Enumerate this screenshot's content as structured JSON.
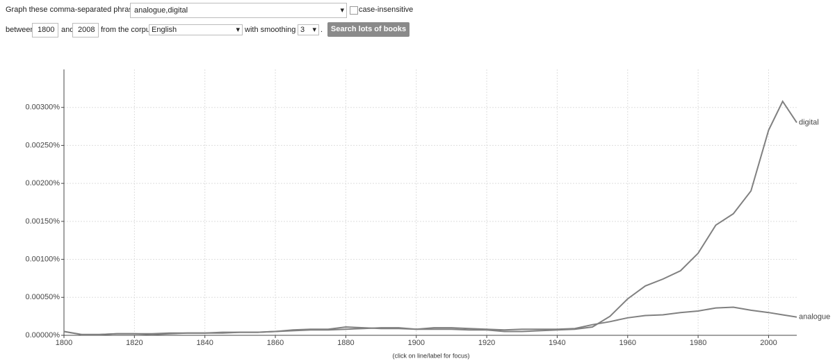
{
  "form": {
    "phrases_label": "Graph these comma-separated phrases:",
    "phrases_value": "analogue,digital",
    "case_label": "case-insensitive",
    "between_label": "between",
    "start_year": "1800",
    "and_label": "and",
    "end_year": "2008",
    "corpus_label": "from the corpus",
    "corpus": "English",
    "smoothing_label": "with smoothing of",
    "smoothing": "3",
    "period": ".",
    "button": "Search lots of books"
  },
  "chart_data": {
    "type": "line",
    "x": [
      1800,
      1805,
      1810,
      1815,
      1820,
      1825,
      1830,
      1835,
      1840,
      1845,
      1850,
      1855,
      1860,
      1865,
      1870,
      1875,
      1880,
      1885,
      1890,
      1895,
      1900,
      1905,
      1910,
      1915,
      1920,
      1925,
      1930,
      1935,
      1940,
      1945,
      1950,
      1955,
      1960,
      1965,
      1970,
      1975,
      1980,
      1985,
      1990,
      1995,
      2000,
      2004,
      2008
    ],
    "series": [
      {
        "name": "digital",
        "color": "#808080",
        "values": [
          5e-05,
          1e-05,
          1e-05,
          2e-05,
          2e-05,
          2e-05,
          3e-05,
          3e-05,
          3e-05,
          4e-05,
          4e-05,
          4e-05,
          5e-05,
          6e-05,
          7e-05,
          7e-05,
          8e-05,
          9e-05,
          0.0001,
          0.0001,
          8e-05,
          8e-05,
          8e-05,
          7e-05,
          7e-05,
          5e-05,
          5e-05,
          6e-05,
          7e-05,
          8e-05,
          0.00011,
          0.00025,
          0.00048,
          0.00065,
          0.00074,
          0.00085,
          0.00108,
          0.00145,
          0.0016,
          0.0019,
          0.0027,
          0.00308,
          0.0028
        ]
      },
      {
        "name": "analogue",
        "color": "#808080",
        "values": [
          5e-05,
          1e-05,
          1e-05,
          2e-05,
          2e-05,
          1e-05,
          2e-05,
          3e-05,
          3e-05,
          3e-05,
          4e-05,
          4e-05,
          5e-05,
          7e-05,
          8e-05,
          8e-05,
          0.00011,
          0.0001,
          9e-05,
          9e-05,
          8e-05,
          0.0001,
          0.0001,
          9e-05,
          8e-05,
          7e-05,
          8e-05,
          8e-05,
          8e-05,
          9e-05,
          0.00014,
          0.00018,
          0.00023,
          0.00026,
          0.00027,
          0.0003,
          0.00032,
          0.00036,
          0.00037,
          0.00033,
          0.0003,
          0.00027,
          0.00024
        ]
      }
    ],
    "xlim": [
      1800,
      2008
    ],
    "xticks": [
      1800,
      1820,
      1840,
      1860,
      1880,
      1900,
      1920,
      1940,
      1960,
      1980,
      2000
    ],
    "ylim": [
      0,
      0.0035
    ],
    "yticks": [
      {
        "value": 0,
        "label": "0.00000%"
      },
      {
        "value": 0.0005,
        "label": "0.00050%"
      },
      {
        "value": 0.001,
        "label": "0.00100%"
      },
      {
        "value": 0.0015,
        "label": "0.00150%"
      },
      {
        "value": 0.002,
        "label": "0.00200%"
      },
      {
        "value": 0.0025,
        "label": "0.00250%"
      },
      {
        "value": 0.003,
        "label": "0.00300%"
      }
    ],
    "grid": true
  },
  "footer": "(click on line/label for focus)"
}
